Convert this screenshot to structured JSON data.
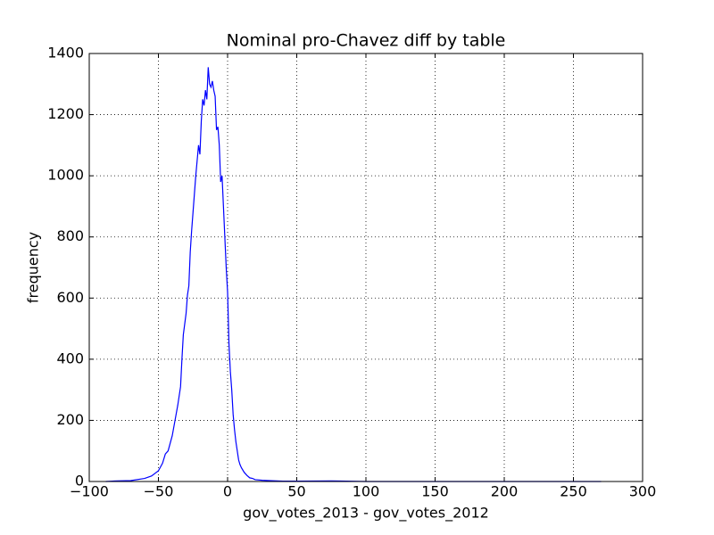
{
  "chart_data": {
    "type": "line",
    "title": "Nominal pro-Chavez diff by table",
    "xlabel": "gov_votes_2013 - gov_votes_2012",
    "ylabel": "frequency",
    "x": [
      -88,
      -80,
      -70,
      -60,
      -55,
      -50,
      -47,
      -45,
      -43,
      -40,
      -38,
      -36,
      -34,
      -33,
      -32,
      -30,
      -29,
      -28,
      -27,
      -26,
      -25,
      -24,
      -23,
      -22,
      -21,
      -20,
      -19,
      -18,
      -17,
      -16,
      -15,
      -14,
      -13,
      -12,
      -11,
      -10,
      -9,
      -8,
      -7,
      -6,
      -5,
      -4,
      -3,
      -2,
      -1,
      0,
      1,
      2,
      3,
      4,
      5,
      6,
      7,
      8,
      9,
      10,
      12,
      14,
      16,
      18,
      20,
      25,
      30,
      40,
      50,
      75,
      100,
      150,
      200,
      270
    ],
    "series": [
      {
        "name": "frequency",
        "color": "#0000ff",
        "values": [
          0,
          2,
          3,
          10,
          18,
          35,
          60,
          90,
          100,
          150,
          200,
          250,
          310,
          400,
          480,
          550,
          610,
          640,
          750,
          820,
          880,
          940,
          1000,
          1050,
          1100,
          1070,
          1180,
          1250,
          1230,
          1280,
          1250,
          1355,
          1300,
          1290,
          1310,
          1280,
          1260,
          1150,
          1160,
          1100,
          980,
          1000,
          900,
          800,
          700,
          620,
          450,
          360,
          300,
          220,
          170,
          130,
          100,
          70,
          55,
          45,
          30,
          20,
          12,
          10,
          6,
          4,
          3,
          1,
          1,
          2,
          0,
          0,
          0,
          0
        ]
      }
    ],
    "xlim": [
      -100,
      300
    ],
    "ylim": [
      0,
      1400
    ],
    "xticks": [
      {
        "value": -100,
        "label": "−100"
      },
      {
        "value": -50,
        "label": "−50"
      },
      0,
      50,
      100,
      150,
      200,
      250,
      300
    ],
    "yticks": [
      0,
      200,
      400,
      600,
      800,
      1000,
      1200,
      1400
    ],
    "grid": true
  }
}
